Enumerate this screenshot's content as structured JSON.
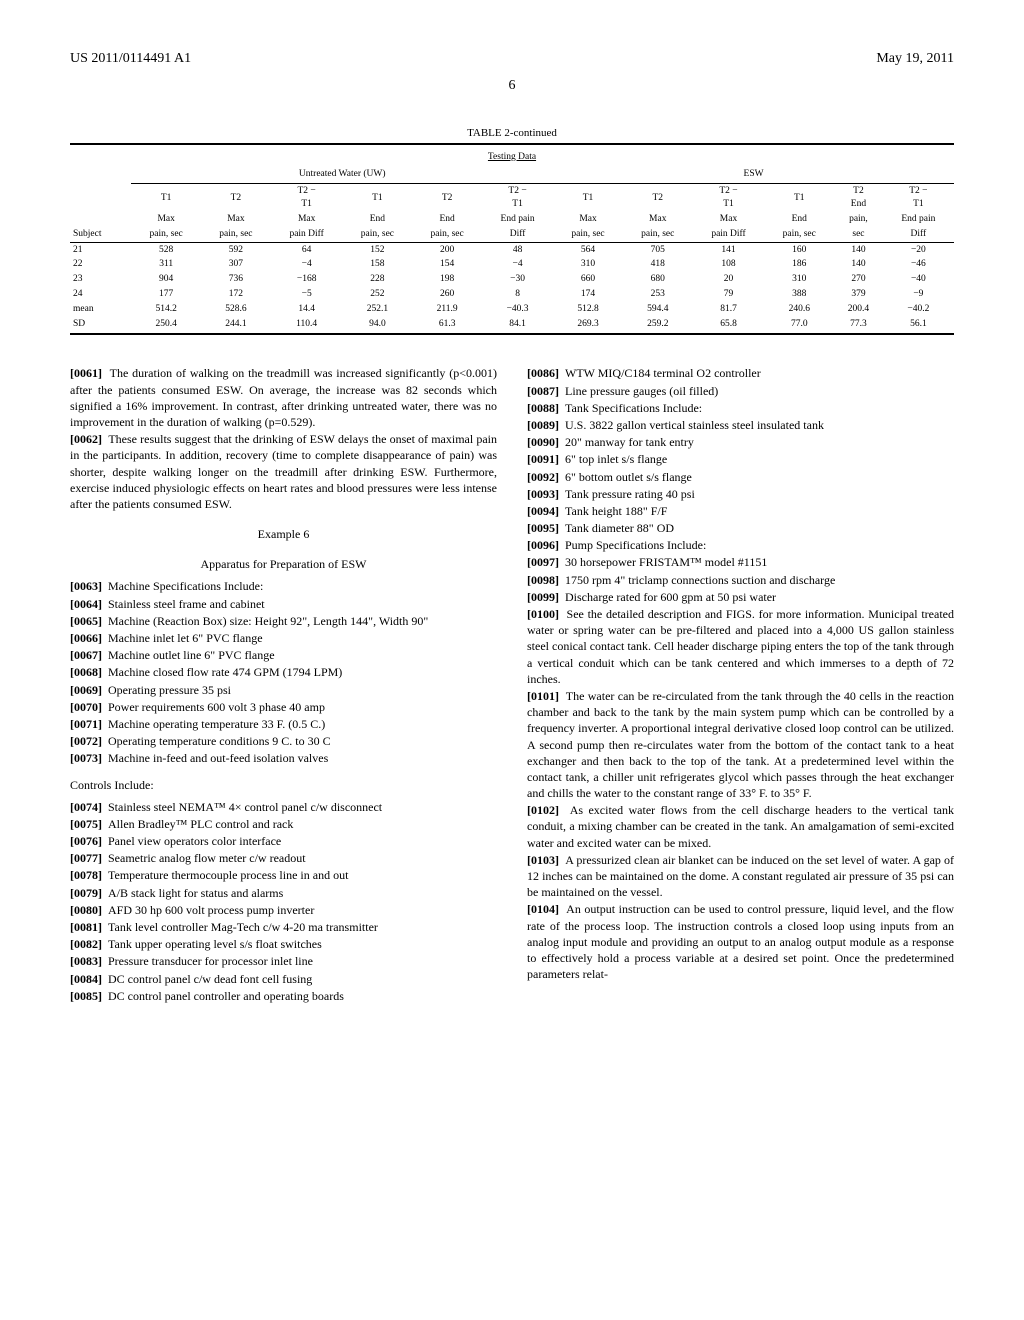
{
  "header": {
    "pub_number": "US 2011/0114491 A1",
    "pub_date": "May 19, 2011",
    "page_number": "6"
  },
  "table": {
    "title": "TABLE 2-continued",
    "subtitle": "Testing Data",
    "group_labels": {
      "left": "Untreated Water (UW)",
      "right": "ESW"
    },
    "col_headers": [
      "Subject",
      "T1 Max pain, sec",
      "T2 Max pain, sec",
      "T2 − T1 Max pain Diff",
      "T1 End pain, sec",
      "T2 End pain, sec",
      "T2 − T1 End pain Diff",
      "T1 Max pain, sec",
      "T2 Max pain, sec",
      "T2 − T1 Max pain Diff",
      "T1 End pain, sec",
      "T2 End pain, sec",
      "T2 − T1 End pain Diff"
    ],
    "rows": [
      [
        "21",
        "528",
        "592",
        "64",
        "152",
        "200",
        "48",
        "564",
        "705",
        "141",
        "160",
        "140",
        "−20"
      ],
      [
        "22",
        "311",
        "307",
        "−4",
        "158",
        "154",
        "−4",
        "310",
        "418",
        "108",
        "186",
        "140",
        "−46"
      ],
      [
        "23",
        "904",
        "736",
        "−168",
        "228",
        "198",
        "−30",
        "660",
        "680",
        "20",
        "310",
        "270",
        "−40"
      ],
      [
        "24",
        "177",
        "172",
        "−5",
        "252",
        "260",
        "8",
        "174",
        "253",
        "79",
        "388",
        "379",
        "−9"
      ],
      [
        "mean",
        "514.2",
        "528.6",
        "14.4",
        "252.1",
        "211.9",
        "−40.3",
        "512.8",
        "594.4",
        "81.7",
        "240.6",
        "200.4",
        "−40.2"
      ],
      [
        "SD",
        "250.4",
        "244.1",
        "110.4",
        "94.0",
        "61.3",
        "84.1",
        "269.3",
        "259.2",
        "65.8",
        "77.0",
        "77.3",
        "56.1"
      ]
    ]
  },
  "left_col": {
    "p61": "The duration of walking on the treadmill was increased significantly (p<0.001) after the patients consumed ESW. On average, the increase was 82 seconds which signified a 16% improvement. In contrast, after drinking untreated water, there was no improvement in the duration of walking (p=0.529).",
    "p62": "These results suggest that the drinking of ESW delays the onset of maximal pain in the participants. In addition, recovery (time to complete disappearance of pain) was shorter, despite walking longer on the treadmill after drinking ESW. Furthermore, exercise induced physiologic effects on heart rates and blood pressures were less intense after the patients consumed ESW.",
    "example6_title": "Example 6",
    "example6_sub": "Apparatus for Preparation of ESW",
    "p63": "Machine Specifications Include:",
    "p64": "Stainless steel frame and cabinet",
    "p65": "Machine (Reaction Box) size: Height 92\", Length 144\", Width 90\"",
    "p66": "Machine inlet let 6\" PVC flange",
    "p67": "Machine outlet line 6\" PVC flange",
    "p68": "Machine closed flow rate 474 GPM (1794 LPM)",
    "p69": "Operating pressure 35 psi",
    "p70": "Power requirements 600 volt 3 phase 40 amp",
    "p71": "Machine operating temperature 33 F. (0.5 C.)",
    "p72": "Operating temperature conditions 9 C. to 30 C",
    "p73": "Machine in-feed and out-feed isolation valves",
    "controls_heading": "Controls Include:",
    "p74": "Stainless steel NEMA™ 4× control panel c/w disconnect",
    "p75": "Allen Bradley™ PLC control and rack",
    "p76": "Panel view operators color interface",
    "p77": "Seametric analog flow meter c/w readout",
    "p78": "Temperature thermocouple process line in and out",
    "p79": "A/B stack light for status and alarms",
    "p80": "AFD 30 hp 600 volt process pump inverter",
    "p81": "Tank level controller Mag-Tech c/w 4-20 ma transmitter",
    "p82": "Tank upper operating level s/s float switches",
    "p83": "Pressure transducer for processor inlet line",
    "p84": "DC control panel c/w dead font cell fusing",
    "p85": "DC control panel controller and operating boards"
  },
  "right_col": {
    "p86": "WTW MIQ/C184 terminal O2 controller",
    "p87": "Line pressure gauges (oil filled)",
    "p88": "Tank Specifications Include:",
    "p89": "U.S. 3822 gallon vertical stainless steel insulated tank",
    "p90": "20\" manway for tank entry",
    "p91": "6\" top inlet s/s flange",
    "p92": "6\" bottom outlet s/s flange",
    "p93": "Tank pressure rating 40 psi",
    "p94": "Tank height 188\" F/F",
    "p95": "Tank diameter 88\" OD",
    "p96": "Pump Specifications Include:",
    "p97": "30 horsepower FRISTAM™ model #1151",
    "p98": "1750 rpm 4\" triclamp connections suction and discharge",
    "p99": "Discharge rated for 600 gpm at 50 psi water",
    "p100": "See the detailed description and FIGS. for more information. Municipal treated water or spring water can be pre-filtered and placed into a 4,000 US gallon stainless steel conical contact tank. Cell header discharge piping enters the top of the tank through a vertical conduit which can be tank centered and which immerses to a depth of 72 inches.",
    "p101": "The water can be re-circulated from the tank through the 40 cells in the reaction chamber and back to the tank by the main system pump which can be controlled by a frequency inverter. A proportional integral derivative closed loop control can be utilized. A second pump then re-circulates water from the bottom of the contact tank to a heat exchanger and then back to the top of the tank. At a predetermined level within the contact tank, a chiller unit refrigerates glycol which passes through the heat exchanger and chills the water to the constant range of 33° F. to 35° F.",
    "p102": "As excited water flows from the cell discharge headers to the vertical tank conduit, a mixing chamber can be created in the tank. An amalgamation of semi-excited water and excited water can be mixed.",
    "p103": "A pressurized clean air blanket can be induced on the set level of water. A gap of 12 inches can be maintained on the dome. A constant regulated air pressure of 35 psi can be maintained on the vessel.",
    "p104": "An output instruction can be used to control pressure, liquid level, and the flow rate of the process loop. The instruction controls a closed loop using inputs from an analog input module and providing an output to an analog output module as a response to effectively hold a process variable at a desired set point. Once the predetermined parameters relat-"
  }
}
